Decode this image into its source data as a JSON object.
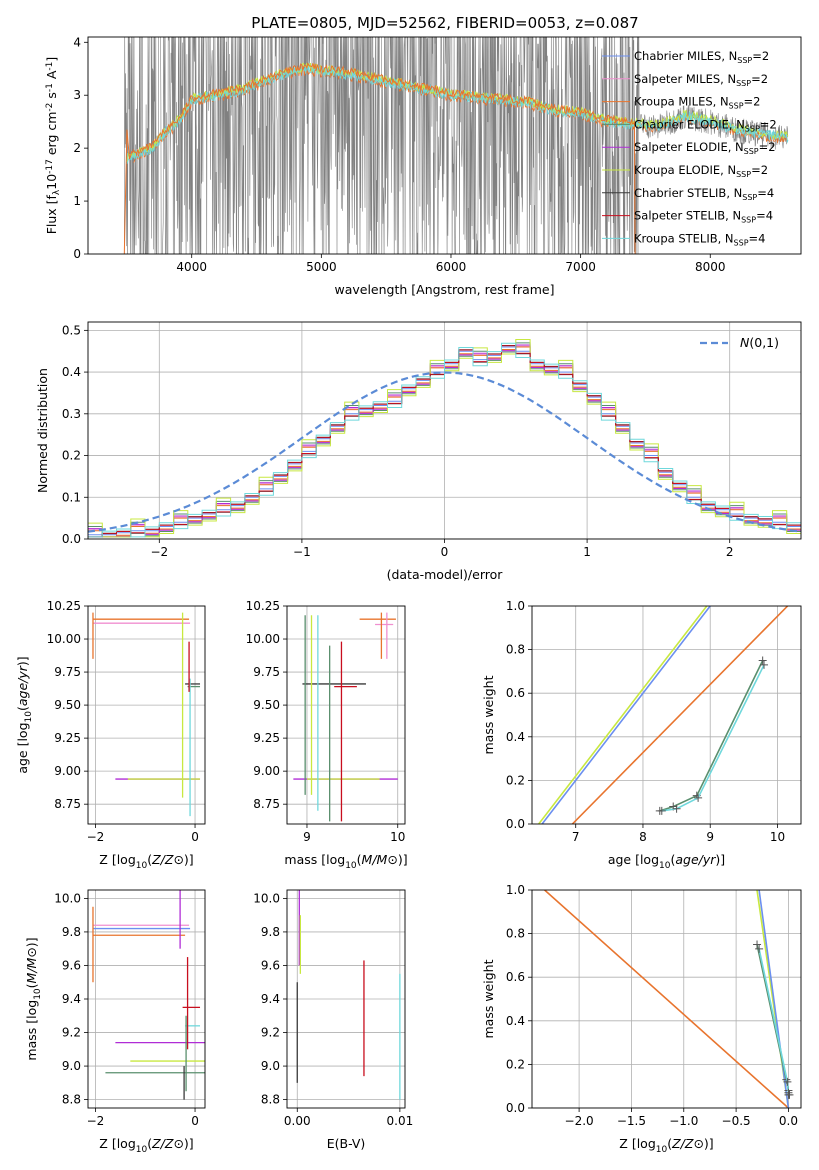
{
  "figure_title": "PLATE=0805, MJD=52562, FIBERID=0053, z=0.087",
  "colors": {
    "grid": "#b0b0b0",
    "spectrum": "#808080",
    "normal_curve": "#5b8bd6",
    "series": [
      "#6b8ff0",
      "#f08fd0",
      "#e8742e",
      "#5a8f6e",
      "#b02cd6",
      "#c8e840",
      "#3a3a3a",
      "#c80e1e",
      "#6fd8dc"
    ]
  },
  "legend_series": [
    {
      "base": "Chabrier MILES, N",
      "sub": "SSP",
      "tail": "=2"
    },
    {
      "base": "Salpeter MILES, N",
      "sub": "SSP",
      "tail": "=2"
    },
    {
      "base": "Kroupa MILES, N",
      "sub": "SSP",
      "tail": "=2"
    },
    {
      "base": "Chabrier ELODIE, N",
      "sub": "SSP",
      "tail": "=2"
    },
    {
      "base": "Salpeter ELODIE, N",
      "sub": "SSP",
      "tail": "=2"
    },
    {
      "base": "Kroupa ELODIE, N",
      "sub": "SSP",
      "tail": "=2"
    },
    {
      "base": "Chabrier STELIB, N",
      "sub": "SSP",
      "tail": "=4"
    },
    {
      "base": "Salpeter STELIB, N",
      "sub": "SSP",
      "tail": "=4"
    },
    {
      "base": "Kroupa STELIB, N",
      "sub": "SSP",
      "tail": "=4"
    }
  ],
  "chart_data": [
    {
      "type": "line",
      "id": "spectrum",
      "xlabel": "wavelength [Angstrom, rest frame]",
      "ylabel_parts": [
        "Flux [f",
        "λ",
        "10",
        "-17",
        " erg cm",
        "-2",
        " s",
        "-1",
        " A",
        "-1",
        "]"
      ],
      "xlim": [
        3200,
        8700
      ],
      "ylim": [
        0,
        4.1
      ],
      "xticks": [
        4000,
        5000,
        6000,
        7000,
        8000
      ],
      "yticks": [
        0,
        1,
        2,
        3,
        4
      ],
      "grid": false,
      "legend_position": "upper right",
      "model_continuum": {
        "x": [
          3500,
          3600,
          3700,
          3800,
          3900,
          4000,
          4200,
          4400,
          4600,
          4800,
          4900,
          5000,
          5200,
          5400,
          5600,
          5800,
          6000,
          6200,
          6400,
          6600,
          6800,
          7000,
          7200,
          7400,
          7600,
          7800,
          8000,
          8200,
          8400,
          8600
        ],
        "y": [
          1.8,
          1.9,
          2.0,
          2.3,
          2.5,
          2.9,
          3.0,
          3.1,
          3.3,
          3.45,
          3.5,
          3.45,
          3.4,
          3.3,
          3.2,
          3.1,
          3.0,
          2.95,
          2.9,
          2.85,
          2.7,
          2.65,
          2.5,
          2.45,
          2.4,
          2.6,
          2.5,
          2.35,
          2.25,
          2.2
        ]
      }
    },
    {
      "type": "histogram",
      "id": "residuals",
      "xlabel": "(data-model)/error",
      "ylabel": "Normed distribution",
      "xlim": [
        -2.5,
        2.5
      ],
      "ylim": [
        0,
        0.52
      ],
      "xticks": [
        -2,
        -1,
        0,
        1,
        2
      ],
      "yticks": [
        0.0,
        0.1,
        0.2,
        0.3,
        0.4,
        0.5
      ],
      "grid": true,
      "legend_position": "upper right",
      "reference_curve": {
        "name": "N(0,1)",
        "mean": 0,
        "sigma": 1
      },
      "bin_edges_start": -2.5,
      "bin_width": 0.1,
      "hist": [
        0.01,
        0.01,
        0.015,
        0.02,
        0.02,
        0.03,
        0.04,
        0.05,
        0.06,
        0.07,
        0.08,
        0.1,
        0.12,
        0.15,
        0.18,
        0.21,
        0.24,
        0.27,
        0.3,
        0.31,
        0.32,
        0.33,
        0.36,
        0.38,
        0.4,
        0.42,
        0.45,
        0.43,
        0.44,
        0.46,
        0.45,
        0.42,
        0.41,
        0.4,
        0.37,
        0.34,
        0.3,
        0.27,
        0.23,
        0.2,
        0.16,
        0.13,
        0.1,
        0.08,
        0.07,
        0.06,
        0.05,
        0.045,
        0.04,
        0.03
      ]
    },
    {
      "type": "scatter",
      "id": "z-age",
      "xlabel": "Z [log10(Z/Z⊙)]",
      "ylabel": "age [log10(age/yr)]",
      "xlim": [
        -2.15,
        0.2
      ],
      "ylim": [
        8.6,
        10.25
      ],
      "xticks": [
        -2,
        0
      ],
      "yticks": [
        8.75,
        9.0,
        9.25,
        9.5,
        9.75,
        10.0,
        10.25
      ],
      "grid": true,
      "hbars": [
        [
          -2.05,
          -0.12,
          10.15,
          2
        ],
        [
          -2.05,
          -0.1,
          10.12,
          1
        ],
        [
          -1.6,
          0.1,
          8.94,
          4
        ],
        [
          -1.35,
          0.1,
          8.94,
          5
        ],
        [
          -0.2,
          0.1,
          9.66,
          6
        ],
        [
          -0.15,
          0.1,
          9.64,
          3
        ]
      ],
      "vbars": [
        [
          -2.05,
          9.85,
          10.2,
          2
        ],
        [
          -0.25,
          8.8,
          10.2,
          5
        ],
        [
          -0.1,
          8.66,
          9.7,
          8
        ],
        [
          -0.12,
          9.6,
          9.98,
          7
        ]
      ]
    },
    {
      "type": "scatter",
      "id": "mass-age",
      "xlabel": "mass [log10(M/M⊙)]",
      "ylabel": "",
      "xlim": [
        8.78,
        10.08
      ],
      "ylim": [
        8.6,
        10.25
      ],
      "xticks": [
        9,
        10
      ],
      "yticks": [
        8.75,
        9.0,
        9.25,
        9.5,
        9.75,
        10.0,
        10.25
      ],
      "grid": true,
      "hbars": [
        [
          8.95,
          9.65,
          9.66,
          6
        ],
        [
          9.3,
          9.55,
          9.64,
          7
        ],
        [
          8.85,
          10.0,
          8.94,
          4
        ],
        [
          9.0,
          9.8,
          8.94,
          5
        ],
        [
          9.58,
          9.98,
          10.15,
          2
        ],
        [
          9.75,
          9.95,
          10.11,
          1
        ]
      ],
      "vbars": [
        [
          8.98,
          8.82,
          10.18,
          3
        ],
        [
          9.05,
          8.82,
          10.18,
          5
        ],
        [
          9.12,
          8.7,
          10.18,
          8
        ],
        [
          9.25,
          8.62,
          9.95,
          3
        ],
        [
          9.38,
          8.62,
          9.98,
          7
        ],
        [
          9.82,
          9.85,
          10.2,
          2
        ],
        [
          9.88,
          9.85,
          10.2,
          1
        ]
      ]
    },
    {
      "type": "line",
      "id": "age-weight",
      "xlabel": "age [log10(age/yr)]",
      "ylabel": "mass weight",
      "xlim": [
        6.35,
        10.35
      ],
      "ylim": [
        0,
        1
      ],
      "xticks": [
        7,
        8,
        9,
        10
      ],
      "yticks": [
        0.0,
        0.2,
        0.4,
        0.6,
        0.8,
        1.0
      ],
      "grid": true,
      "series": [
        {
          "color_index": 5,
          "x": [
            6.45,
            8.95
          ],
          "y": [
            0.0,
            1.0
          ]
        },
        {
          "color_index": 0,
          "x": [
            6.5,
            9.0
          ],
          "y": [
            0.0,
            1.0
          ]
        },
        {
          "color_index": 2,
          "x": [
            6.95,
            10.15
          ],
          "y": [
            0.0,
            1.0
          ]
        },
        {
          "color_index": 3,
          "x": [
            8.25,
            8.45,
            8.8,
            9.78
          ],
          "y": [
            0.06,
            0.08,
            0.13,
            0.75
          ]
        },
        {
          "color_index": 8,
          "x": [
            8.28,
            8.5,
            8.82,
            9.8
          ],
          "y": [
            0.06,
            0.07,
            0.12,
            0.73
          ]
        }
      ]
    },
    {
      "type": "scatter",
      "id": "z-mass",
      "xlabel": "Z [log10(Z/Z⊙)]",
      "ylabel": "mass [log10(M/M⊙)]",
      "xlim": [
        -2.15,
        0.2
      ],
      "ylim": [
        8.75,
        10.05
      ],
      "xticks": [
        -2,
        0
      ],
      "yticks": [
        8.8,
        9.0,
        9.2,
        9.4,
        9.6,
        9.8,
        10.0
      ],
      "grid": true,
      "hbars": [
        [
          -2.05,
          -0.12,
          9.84,
          1
        ],
        [
          -2.05,
          -0.1,
          9.82,
          0
        ],
        [
          -2.05,
          -0.2,
          9.78,
          2
        ],
        [
          -0.25,
          0.1,
          9.35,
          7
        ],
        [
          -0.2,
          0.1,
          9.24,
          8
        ],
        [
          -1.6,
          0.2,
          9.14,
          4
        ],
        [
          -1.3,
          0.2,
          9.03,
          5
        ],
        [
          -1.8,
          0.2,
          8.96,
          3
        ]
      ],
      "vbars": [
        [
          -2.05,
          9.5,
          9.95,
          2
        ],
        [
          -0.3,
          9.7,
          10.05,
          4
        ],
        [
          -0.15,
          9.1,
          9.65,
          7
        ],
        [
          -0.18,
          8.85,
          9.3,
          3
        ],
        [
          -0.22,
          8.8,
          9.0,
          6
        ]
      ]
    },
    {
      "type": "scatter",
      "id": "ebv-mass",
      "xlabel": "E(B-V)",
      "ylabel": "",
      "xlim": [
        -0.001,
        0.0105
      ],
      "ylim": [
        8.75,
        10.05
      ],
      "xticks": [
        0.0,
        0.01
      ],
      "xtick_labels": [
        "0.00",
        "0.01"
      ],
      "yticks": [
        8.8,
        9.0,
        9.2,
        9.4,
        9.6,
        9.8,
        10.0
      ],
      "grid": true,
      "vbars": [
        [
          0.0002,
          9.6,
          10.05,
          4
        ],
        [
          0.0003,
          9.55,
          9.9,
          5
        ],
        [
          0.0,
          8.9,
          9.5,
          6
        ],
        [
          0.0065,
          8.94,
          9.63,
          7
        ],
        [
          0.01,
          8.8,
          9.55,
          8
        ]
      ]
    },
    {
      "type": "line",
      "id": "z-weight",
      "xlabel": "Z [log10(Z/Z⊙)]",
      "ylabel": "mass weight",
      "xlim": [
        -2.45,
        0.12
      ],
      "ylim": [
        0,
        1
      ],
      "xticks": [
        -2.0,
        -1.5,
        -1.0,
        -0.5,
        0.0
      ],
      "yticks": [
        0.0,
        0.2,
        0.4,
        0.6,
        0.8,
        1.0
      ],
      "grid": true,
      "series": [
        {
          "color_index": 2,
          "x": [
            -2.33,
            0.0
          ],
          "y": [
            1.0,
            0.0
          ]
        },
        {
          "color_index": 5,
          "x": [
            -0.3,
            0.0
          ],
          "y": [
            1.0,
            0.0
          ]
        },
        {
          "color_index": 0,
          "x": [
            -0.28,
            0.0
          ],
          "y": [
            1.0,
            0.0
          ]
        },
        {
          "color_index": 3,
          "x": [
            -0.3,
            -0.02,
            0.0,
            0.0
          ],
          "y": [
            0.75,
            0.13,
            0.08,
            0.06
          ]
        },
        {
          "color_index": 8,
          "x": [
            -0.28,
            -0.01,
            0.0,
            0.01
          ],
          "y": [
            0.73,
            0.12,
            0.07,
            0.06
          ]
        }
      ]
    }
  ]
}
